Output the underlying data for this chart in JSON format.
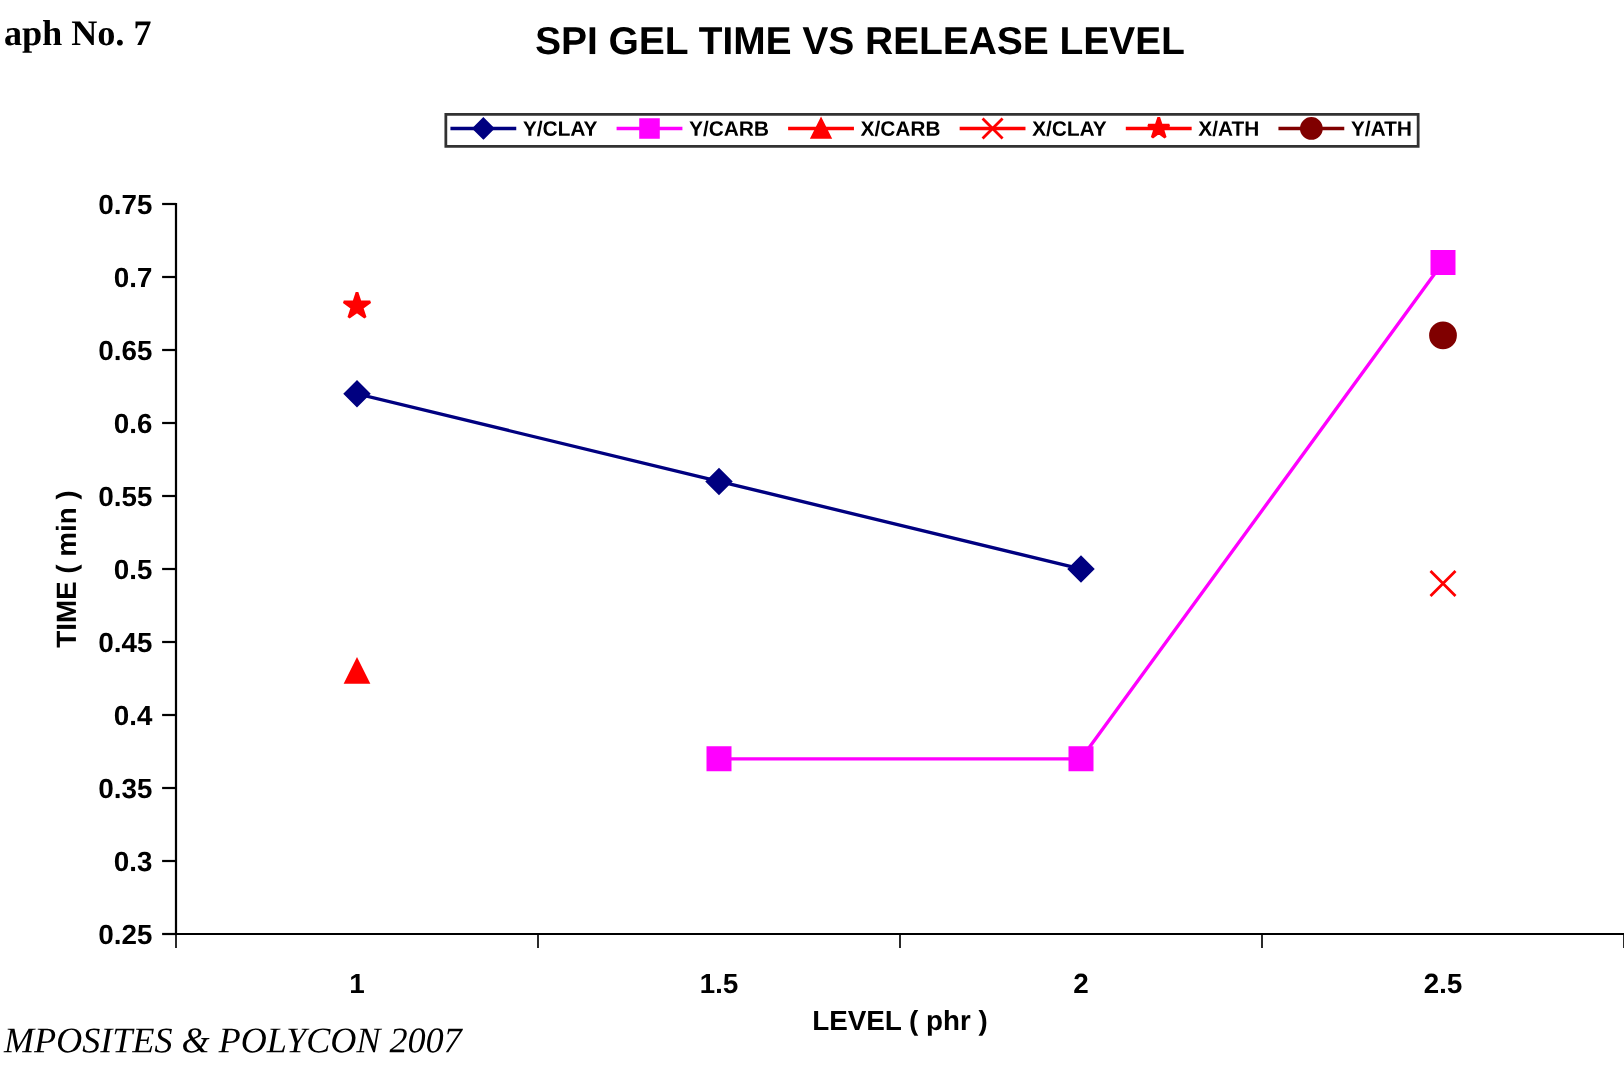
{
  "chart_data": {
    "type": "line",
    "title": "SPI GEL TIME VS RELEASE LEVEL",
    "xlabel": "LEVEL ( phr )",
    "ylabel": "TIME ( min )",
    "categories": [
      "1",
      "1.5",
      "2",
      "2.5"
    ],
    "series": [
      {
        "name": "Y/CLAY",
        "color": "#000080",
        "marker": "diamond",
        "values": [
          0.62,
          0.56,
          0.5,
          null
        ]
      },
      {
        "name": "Y/CARB",
        "color": "#ff00ff",
        "marker": "square",
        "values": [
          null,
          0.37,
          0.37,
          0.71
        ]
      },
      {
        "name": "X/CARB",
        "color": "#ff0000",
        "marker": "triangle",
        "values": [
          0.43,
          null,
          null,
          null
        ]
      },
      {
        "name": "X/CLAY",
        "color": "#ff0000",
        "marker": "cross",
        "values": [
          null,
          null,
          null,
          0.49
        ]
      },
      {
        "name": "X/ATH",
        "color": "#ff0000",
        "marker": "star",
        "values": [
          0.68,
          null,
          null,
          null
        ]
      },
      {
        "name": "Y/ATH",
        "color": "#800000",
        "marker": "circle",
        "values": [
          null,
          null,
          null,
          0.66
        ]
      }
    ],
    "ylim": [
      0.25,
      0.75
    ],
    "yticks": [
      0.25,
      0.3,
      0.35,
      0.4,
      0.45,
      0.5,
      0.55,
      0.6,
      0.65,
      0.7,
      0.75
    ],
    "grid": false,
    "legend": "top",
    "line_style": "solid",
    "annotations": [
      "aph No. 7",
      "MPOSITES & POLYCON 2007"
    ]
  }
}
